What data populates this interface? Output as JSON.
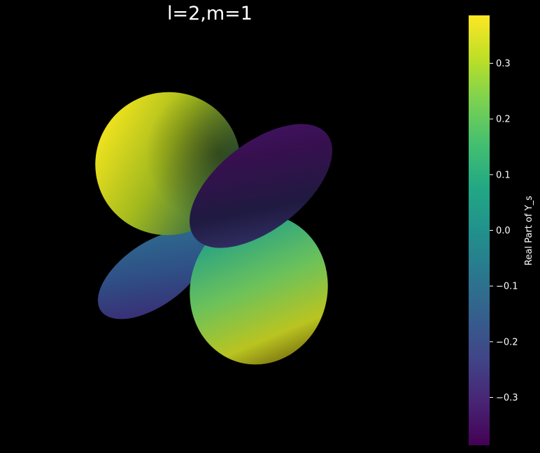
{
  "chart_data": {
    "type": "surface3d",
    "title": "l=2,m=1",
    "quantity": "real spherical harmonic Y(2,1)",
    "lobes": [
      {
        "position": "upper-left",
        "sign": "positive",
        "value_range": [
          0.0,
          0.38
        ]
      },
      {
        "position": "lower-right",
        "sign": "positive",
        "value_range": [
          0.0,
          0.38
        ]
      },
      {
        "position": "upper-right",
        "sign": "negative",
        "value_range": [
          -0.38,
          0.0
        ]
      },
      {
        "position": "lower-left",
        "sign": "negative",
        "value_range": [
          -0.38,
          0.0
        ]
      }
    ],
    "colorbar": {
      "label": "Real Part of Y_s",
      "colormap": "viridis",
      "range": [
        -0.386,
        0.386
      ],
      "ticks": [
        0.3,
        0.2,
        0.1,
        0.0,
        -0.1,
        -0.2,
        -0.3
      ],
      "tick_labels": [
        "0.3",
        "0.2",
        "0.1",
        "0.0",
        "−0.1",
        "−0.2",
        "−0.3"
      ]
    },
    "background": "#000000",
    "axes_visible": false
  }
}
